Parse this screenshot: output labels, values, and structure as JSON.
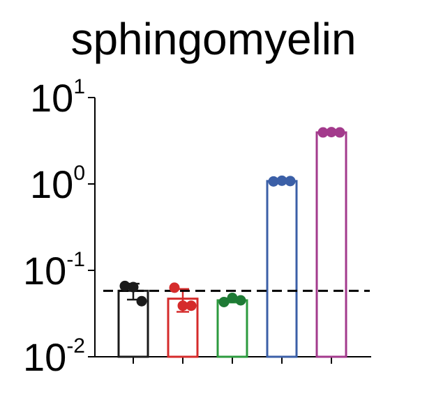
{
  "chart_data": {
    "type": "bar",
    "title": "sphingomyelin",
    "xlabel": "",
    "ylabel": "",
    "y_scale": "log",
    "ylim": [
      0.01,
      10
    ],
    "y_ticks": [
      {
        "base": "10",
        "exp": "1"
      },
      {
        "base": "10",
        "exp": "0"
      },
      {
        "base": "10",
        "exp": "-1"
      },
      {
        "base": "10",
        "exp": "-2"
      }
    ],
    "reference_line": {
      "value": 0.058,
      "style": "dashed",
      "color": "#000000"
    },
    "error_bars": true,
    "grid": false,
    "legend": "none",
    "bars": [
      {
        "color": "#1a1a1a",
        "value": 0.058,
        "points": [
          0.066,
          0.064,
          0.044
        ]
      },
      {
        "color": "#d52b2b",
        "value": 0.047,
        "points": [
          0.063,
          0.039,
          0.039
        ]
      },
      {
        "color": "#2c9a3e",
        "value": 0.045,
        "points": [
          0.043,
          0.048,
          0.045
        ],
        "point_color": "#1e7a35"
      },
      {
        "color": "#3b5fa7",
        "value": 1.08,
        "points": [
          1.07,
          1.09,
          1.08
        ]
      },
      {
        "color": "#a33a8c",
        "value": 3.95,
        "points": [
          3.95,
          3.98,
          3.95
        ]
      }
    ]
  }
}
